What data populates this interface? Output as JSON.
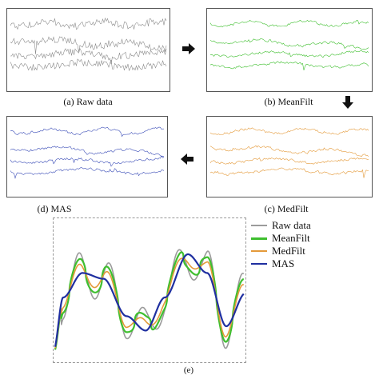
{
  "panels": [
    {
      "caption": "(a) Raw data",
      "color": "#8c8c8c"
    },
    {
      "caption": "(b) MeanFilt",
      "color": "#3fbf2f"
    },
    {
      "caption": "(c) MedFilt",
      "color": "#e49a3a"
    },
    {
      "caption": "(d) MAS",
      "color": "#3d4fb8"
    }
  ],
  "arrows": [
    "arrow-right",
    "arrow-down",
    "arrow-left"
  ],
  "panel_e": {
    "caption": "(e)",
    "legend": [
      {
        "label": "Raw data",
        "color": "#9b9b9b"
      },
      {
        "label": "MeanFilt",
        "color": "#3fbf2f"
      },
      {
        "label": "MedFilt",
        "color": "#e49a3a"
      },
      {
        "label": "MAS",
        "color": "#1f2fa0"
      }
    ]
  }
}
